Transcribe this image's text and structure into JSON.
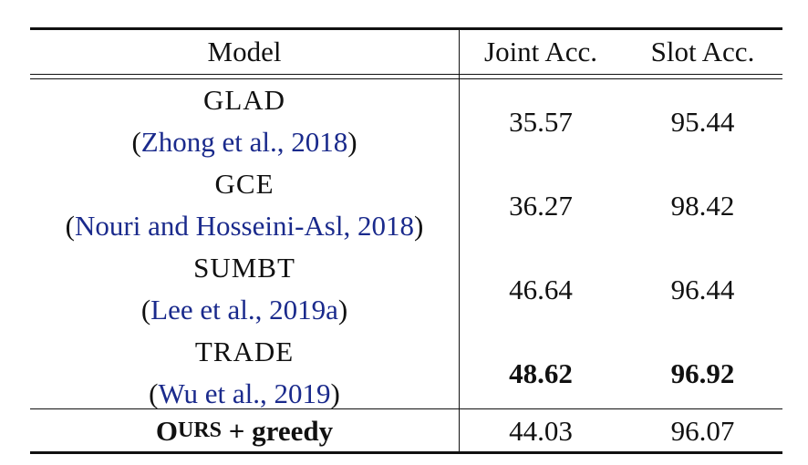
{
  "headers": {
    "model": "Model",
    "joint": "Joint Acc.",
    "slot": "Slot Acc."
  },
  "rows": [
    {
      "name": "GLAD",
      "cite": "Zhong et al., 2018",
      "joint": "35.57",
      "slot": "95.44"
    },
    {
      "name": "GCE",
      "cite": "Nouri and Hosseini-Asl, 2018",
      "joint": "36.27",
      "slot": "98.42"
    },
    {
      "name": "SUMBT",
      "cite": "Lee et al., 2019a",
      "joint": "46.64",
      "slot": "96.44"
    },
    {
      "name": "TRADE",
      "cite": "Wu et al., 2019",
      "joint": "48.62",
      "slot": "96.92"
    }
  ],
  "ours": {
    "name_prefix": "O",
    "name_rest": "URS",
    "name_suffix": " + greedy",
    "joint": "44.03",
    "slot": "96.07"
  },
  "colors": {
    "citation": "#1a2a8c",
    "text": "#111111"
  }
}
